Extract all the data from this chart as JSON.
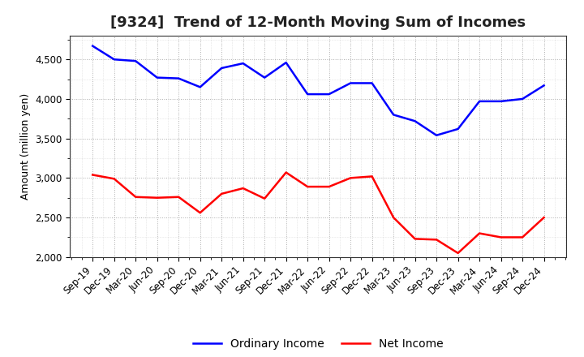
{
  "title": "[9324]  Trend of 12-Month Moving Sum of Incomes",
  "ylabel": "Amount (million yen)",
  "x_labels": [
    "Sep-19",
    "Dec-19",
    "Mar-20",
    "Jun-20",
    "Sep-20",
    "Dec-20",
    "Mar-21",
    "Jun-21",
    "Sep-21",
    "Dec-21",
    "Mar-22",
    "Jun-22",
    "Sep-22",
    "Dec-22",
    "Mar-23",
    "Jun-23",
    "Sep-23",
    "Dec-23",
    "Mar-24",
    "Jun-24",
    "Sep-24",
    "Dec-24"
  ],
  "ordinary_income": [
    4670,
    4500,
    4480,
    4270,
    4260,
    4150,
    4390,
    4450,
    4270,
    4460,
    4060,
    4060,
    4200,
    4200,
    3800,
    3720,
    3540,
    3620,
    3970,
    3970,
    4000,
    4170
  ],
  "net_income": [
    3040,
    2990,
    2760,
    2750,
    2760,
    2560,
    2800,
    2870,
    2740,
    3070,
    2890,
    2890,
    3000,
    3020,
    2500,
    2230,
    2220,
    2050,
    2300,
    2250,
    2250,
    2500
  ],
  "ordinary_color": "#0000FF",
  "net_color": "#FF0000",
  "ylim": [
    2000,
    4800
  ],
  "yticks": [
    2000,
    2500,
    3000,
    3500,
    4000,
    4500
  ],
  "background_color": "#FFFFFF",
  "grid_color": "#999999",
  "title_fontsize": 13,
  "axis_fontsize": 9,
  "tick_fontsize": 8.5,
  "legend_fontsize": 10,
  "line_width": 1.8
}
